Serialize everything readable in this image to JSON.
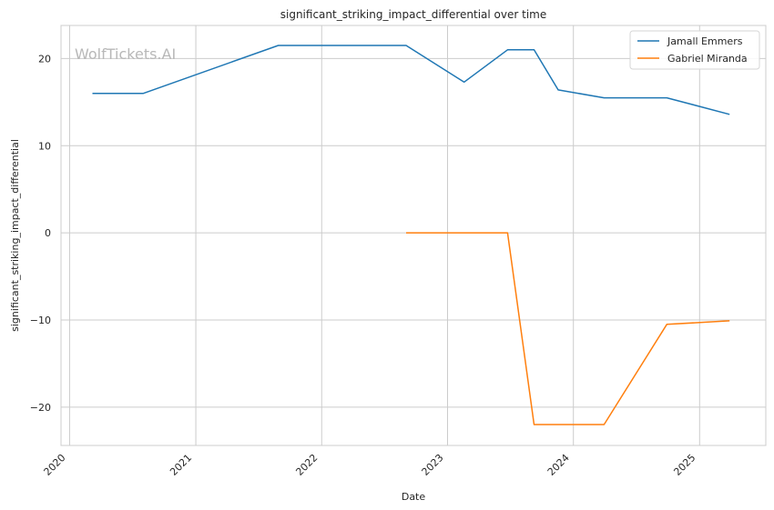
{
  "chart_data": {
    "type": "line",
    "title": "significant_striking_impact_differential over time",
    "xlabel": "Date",
    "ylabel": "significant_striking_impact_differential",
    "watermark": "WolfTickets.AI",
    "x_ticks": [
      "2020",
      "2021",
      "2022",
      "2023",
      "2024",
      "2025"
    ],
    "y_ticks": [
      20,
      10,
      0,
      -10,
      -20
    ],
    "xlim": [
      "2019-12-07",
      "2025-07-12"
    ],
    "ylim": [
      -24.4,
      23.8
    ],
    "grid": true,
    "legend_position": "top-right",
    "series": [
      {
        "name": "Jamall Emmers",
        "color": "#1f77b4",
        "points": [
          {
            "x": "2020-03-07",
            "y": 16.0
          },
          {
            "x": "2020-08-01",
            "y": 16.0
          },
          {
            "x": "2021-08-28",
            "y": 21.5
          },
          {
            "x": "2022-09-03",
            "y": 21.5
          },
          {
            "x": "2023-02-18",
            "y": 17.3
          },
          {
            "x": "2023-06-24",
            "y": 21.0
          },
          {
            "x": "2023-09-09",
            "y": 21.0
          },
          {
            "x": "2023-11-18",
            "y": 16.4
          },
          {
            "x": "2024-03-30",
            "y": 15.5
          },
          {
            "x": "2024-09-28",
            "y": 15.5
          },
          {
            "x": "2025-03-29",
            "y": 13.6
          }
        ]
      },
      {
        "name": "Gabriel Miranda",
        "color": "#ff7f0e",
        "points": [
          {
            "x": "2022-09-03",
            "y": 0.0
          },
          {
            "x": "2023-06-24",
            "y": 0.0
          },
          {
            "x": "2023-09-09",
            "y": -22.0
          },
          {
            "x": "2024-03-30",
            "y": -22.0
          },
          {
            "x": "2024-09-28",
            "y": -10.5
          },
          {
            "x": "2025-03-29",
            "y": -10.1
          }
        ]
      }
    ]
  }
}
